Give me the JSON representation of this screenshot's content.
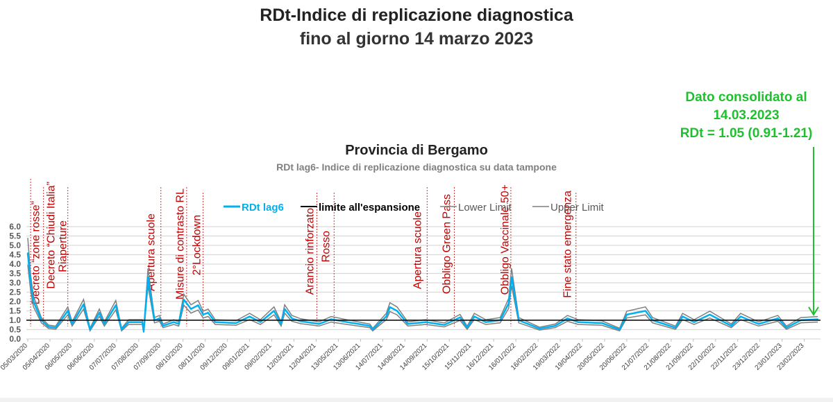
{
  "header": {
    "title": "RDt-Indice di replicazione diagnostica",
    "subtitle": "fino al giorno 14 marzo 2023"
  },
  "note": {
    "line1": "Dato consolidato al",
    "line2": "14.03.2023",
    "line3": "RDt = 1.05 (0.91-1.21)",
    "color": "#1fbf2f"
  },
  "chart_data": {
    "type": "line",
    "title": "Provincia di Bergamo",
    "subtitle": "RDt lag6- Indice di replicazione diagnostica su data tampone",
    "xlabel": "",
    "ylabel": "",
    "x_start_date": "2020-03-05",
    "x_unit": "days since 05/03/2020",
    "ylim": [
      0,
      6
    ],
    "yticks": [
      "0.0",
      "0.5",
      "1.0",
      "1.5",
      "2.0",
      "2.5",
      "3.0",
      "3.5",
      "4.0",
      "4.5",
      "5.0",
      "5.5",
      "6.0"
    ],
    "grid": true,
    "legend_position": "top",
    "legend": [
      "RDt lag6",
      "limite all'espansione",
      "Lower Limit",
      "Upper Limit"
    ],
    "colors": {
      "rdt": "#00b0f0",
      "threshold": "#000000",
      "limits": "#7f7f7f",
      "events": "#c00000"
    },
    "threshold": 1.0,
    "band_relative": 0.14,
    "xticks": [
      "05/03/2020",
      "05/04/2020",
      "06/05/2020",
      "06/06/2020",
      "07/07/2020",
      "07/08/2020",
      "07/09/2020",
      "08/10/2020",
      "08/11/2020",
      "09/12/2020",
      "09/01/2021",
      "09/02/2021",
      "12/03/2021",
      "12/04/2021",
      "13/05/2021",
      "13/06/2021",
      "14/07/2021",
      "14/08/2021",
      "14/09/2021",
      "15/10/2021",
      "15/11/2021",
      "16/12/2021",
      "16/01/2022",
      "16/02/2022",
      "19/03/2022",
      "19/04/2022",
      "20/05/2022",
      "20/06/2022",
      "21/07/2022",
      "21/08/2022",
      "21/09/2022",
      "22/10/2022",
      "22/11/2022",
      "23/12/2022",
      "23/01/2023",
      "23/02/2023"
    ],
    "x": [
      0,
      4,
      8,
      19,
      29,
      39,
      56,
      62,
      78,
      87,
      100,
      107,
      123,
      131,
      141,
      160,
      162,
      168,
      177,
      184,
      189,
      204,
      211,
      218,
      228,
      238,
      245,
      252,
      262,
      291,
      310,
      325,
      344,
      354,
      359,
      369,
      381,
      407,
      424,
      446,
      478,
      482,
      501,
      506,
      516,
      531,
      556,
      582,
      604,
      614,
      624,
      640,
      660,
      672,
      676,
      686,
      715,
      737,
      750,
      754,
      769,
      802,
      827,
      837,
      863,
      873,
      905,
      915,
      931,
      953,
      983,
      996,
      1021,
      1048,
      1060,
      1080,
      1104
    ],
    "rdt": [
      4.6,
      3.0,
      2.0,
      1.0,
      0.65,
      0.6,
      1.5,
      0.8,
      1.85,
      0.5,
      1.4,
      0.8,
      1.8,
      0.5,
      0.9,
      0.9,
      0.4,
      3.3,
      1.0,
      1.1,
      0.7,
      0.9,
      0.8,
      2.1,
      1.6,
      1.8,
      1.3,
      1.4,
      0.9,
      0.85,
      1.2,
      0.9,
      1.5,
      0.8,
      1.6,
      1.1,
      0.95,
      0.8,
      1.05,
      0.9,
      0.7,
      0.5,
      1.2,
      1.7,
      1.5,
      0.8,
      0.9,
      0.75,
      1.15,
      0.6,
      1.2,
      0.9,
      1.0,
      1.9,
      3.3,
      1.0,
      0.55,
      0.7,
      1.0,
      1.1,
      0.9,
      0.85,
      0.5,
      1.3,
      1.5,
      1.0,
      0.6,
      1.2,
      0.9,
      1.3,
      0.7,
      1.2,
      0.8,
      1.1,
      0.6,
      1.0,
      1.05
    ],
    "events": [
      {
        "label": "Decreto “zone rosse”",
        "day": 4
      },
      {
        "label": "Decreto “Chiudi Italia”",
        "day": 22
      },
      {
        "label": "Riaperture",
        "day": 56
      },
      {
        "label": "Apertura scuole",
        "day": 186
      },
      {
        "label": "Misure di contrasto RL",
        "day": 222
      },
      {
        "label": "2°Lockdown",
        "day": 245
      },
      {
        "label": "Arancio rinforzato",
        "day": 404
      },
      {
        "label": "Rosso",
        "day": 428
      },
      {
        "label": "Apertura scuole",
        "day": 558
      },
      {
        "label": "Obbligo Green Pass",
        "day": 596
      },
      {
        "label": "Obbligo Vaccinale 50+",
        "day": 675
      },
      {
        "label": "Fine stato emergenza",
        "day": 766
      }
    ]
  }
}
